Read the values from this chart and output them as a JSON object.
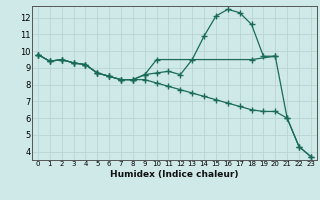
{
  "xlabel": "Humidex (Indice chaleur)",
  "ylabel": "",
  "bg_color": "#cfe8e8",
  "grid_color": "#b8d4d4",
  "line_color": "#1a6b5a",
  "xlim": [
    -0.5,
    23.5
  ],
  "ylim": [
    3.5,
    12.7
  ],
  "xticks": [
    0,
    1,
    2,
    3,
    4,
    5,
    6,
    7,
    8,
    9,
    10,
    11,
    12,
    13,
    14,
    15,
    16,
    17,
    18,
    19,
    20,
    21,
    22,
    23
  ],
  "yticks": [
    4,
    5,
    6,
    7,
    8,
    9,
    10,
    11,
    12
  ],
  "line1_x": [
    0,
    1,
    2,
    3,
    4,
    5,
    6,
    7,
    8,
    9,
    10,
    11,
    12,
    13,
    14,
    15,
    16,
    17,
    18,
    19,
    20,
    21,
    22,
    23
  ],
  "line1_y": [
    9.8,
    9.4,
    9.5,
    9.3,
    9.2,
    8.7,
    8.5,
    8.3,
    8.3,
    8.6,
    8.7,
    8.8,
    8.6,
    9.5,
    10.9,
    12.1,
    12.5,
    12.3,
    11.6,
    9.7,
    9.7,
    6.0,
    4.3,
    3.7
  ],
  "line2_x": [
    0,
    1,
    2,
    3,
    4,
    5,
    6,
    7,
    8,
    9,
    10,
    18,
    20
  ],
  "line2_y": [
    9.8,
    9.4,
    9.5,
    9.3,
    9.2,
    8.7,
    8.5,
    8.3,
    8.3,
    8.6,
    9.5,
    9.5,
    9.7
  ],
  "line3_x": [
    0,
    1,
    2,
    3,
    4,
    5,
    6,
    7,
    8,
    9,
    10,
    11,
    12,
    13,
    14,
    15,
    16,
    17,
    18,
    19,
    20,
    21,
    22,
    23
  ],
  "line3_y": [
    9.8,
    9.4,
    9.5,
    9.3,
    9.2,
    8.7,
    8.5,
    8.3,
    8.3,
    8.3,
    8.1,
    7.9,
    7.7,
    7.5,
    7.3,
    7.1,
    6.9,
    6.7,
    6.5,
    6.4,
    6.4,
    6.0,
    4.3,
    3.7
  ]
}
